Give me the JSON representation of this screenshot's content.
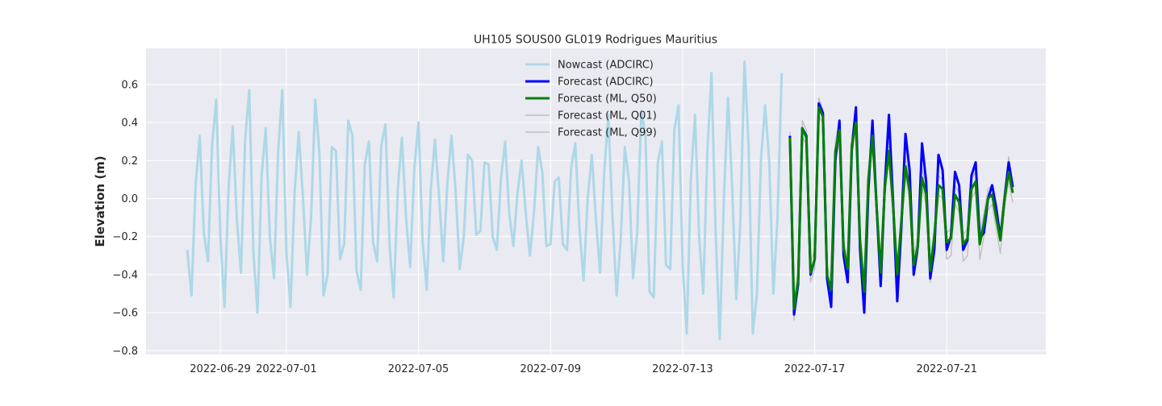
{
  "chart_data": {
    "type": "line",
    "title": "UH105 SOUS00 GL019 Rodrigues Mauritius",
    "xlabel": "",
    "ylabel": "Elevation (m)",
    "ylim": [
      -0.82,
      0.79
    ],
    "xlim": [
      "2022-06-26T18:00",
      "2022-07-24T00:00"
    ],
    "grid": true,
    "legend_position": "top-center",
    "x_ticks": [
      "2022-06-29",
      "2022-07-01",
      "2022-07-05",
      "2022-07-09",
      "2022-07-13",
      "2022-07-17",
      "2022-07-21"
    ],
    "y_ticks": [
      -0.8,
      -0.6,
      -0.4,
      -0.2,
      0.0,
      0.2,
      0.4,
      0.6
    ],
    "y_tick_labels": [
      "−0.8",
      "−0.6",
      "−0.4",
      "−0.2",
      "0.0",
      "0.2",
      "0.4",
      "0.6"
    ],
    "series": [
      {
        "name": "Nowcast (ADCIRC)",
        "color": "#add8e6",
        "x_start": "2022-06-28T00:00",
        "step_hours": 3,
        "values": [
          -0.27,
          -0.51,
          0.07,
          0.33,
          -0.18,
          -0.33,
          0.28,
          0.52,
          -0.2,
          -0.57,
          0.06,
          0.38,
          -0.11,
          -0.39,
          0.31,
          0.57,
          -0.28,
          -0.6,
          0.12,
          0.37,
          -0.2,
          -0.42,
          0.25,
          0.57,
          -0.28,
          -0.57,
          0.03,
          0.35,
          0.01,
          -0.4,
          -0.09,
          0.52,
          0.24,
          -0.51,
          -0.4,
          0.27,
          0.25,
          -0.32,
          -0.24,
          0.41,
          0.33,
          -0.38,
          -0.48,
          0.18,
          0.3,
          -0.23,
          -0.33,
          0.28,
          0.39,
          -0.25,
          -0.52,
          0.05,
          0.32,
          -0.1,
          -0.36,
          0.16,
          0.4,
          -0.22,
          -0.48,
          0.05,
          0.31,
          0.01,
          -0.33,
          0.08,
          0.33,
          0.04,
          -0.37,
          -0.2,
          0.23,
          0.2,
          -0.19,
          -0.17,
          0.19,
          0.18,
          -0.2,
          -0.27,
          0.11,
          0.3,
          -0.08,
          -0.25,
          0.03,
          0.2,
          -0.08,
          -0.3,
          -0.07,
          0.27,
          0.14,
          -0.25,
          -0.24,
          0.09,
          0.11,
          -0.24,
          -0.27,
          0.16,
          0.29,
          -0.15,
          -0.43,
          0.0,
          0.23,
          -0.11,
          -0.39,
          0.13,
          0.44,
          -0.09,
          -0.51,
          -0.22,
          0.27,
          0.1,
          -0.42,
          -0.18,
          0.46,
          0.33,
          -0.49,
          -0.52,
          0.19,
          0.3,
          -0.35,
          -0.37,
          0.36,
          0.49,
          -0.34,
          -0.71,
          0.1,
          0.44,
          -0.2,
          -0.5,
          0.25,
          0.66,
          -0.17,
          -0.74,
          0.0,
          0.53,
          0.06,
          -0.53,
          -0.12,
          0.72,
          0.28,
          -0.71,
          -0.5,
          0.21,
          0.49,
          0.19,
          -0.5,
          -0.1,
          0.66
        ]
      },
      {
        "name": "Forecast (ADCIRC)",
        "color": "#0000ff",
        "x_start": "2022-07-16T06:00",
        "step_hours": 3,
        "values": [
          0.33,
          -0.61,
          -0.45,
          0.37,
          0.33,
          -0.4,
          -0.32,
          0.5,
          0.45,
          -0.42,
          -0.57,
          0.2,
          0.41,
          -0.3,
          -0.44,
          0.26,
          0.48,
          -0.27,
          -0.6,
          0.04,
          0.41,
          -0.04,
          -0.46,
          0.07,
          0.44,
          -0.02,
          -0.54,
          -0.15,
          0.34,
          0.15,
          -0.4,
          -0.25,
          0.29,
          0.09,
          -0.42,
          -0.27,
          0.23,
          0.15,
          -0.27,
          -0.2,
          0.14,
          0.07,
          -0.27,
          -0.22,
          0.12,
          0.19,
          -0.21,
          -0.18,
          0.0,
          0.07,
          -0.05,
          -0.21,
          0.0,
          0.19,
          0.06
        ]
      },
      {
        "name": "Forecast (ML, Q50)",
        "color": "#008000",
        "x_start": "2022-07-16T06:00",
        "step_hours": 3,
        "values": [
          0.32,
          -0.58,
          -0.43,
          0.37,
          0.32,
          -0.39,
          -0.32,
          0.48,
          0.43,
          -0.4,
          -0.48,
          0.25,
          0.36,
          -0.26,
          -0.37,
          0.28,
          0.4,
          -0.22,
          -0.49,
          0.1,
          0.33,
          -0.04,
          -0.39,
          0.06,
          0.25,
          -0.04,
          -0.4,
          -0.12,
          0.17,
          0.04,
          -0.35,
          -0.25,
          0.11,
          0.02,
          -0.38,
          -0.2,
          0.07,
          0.05,
          -0.23,
          -0.21,
          0.02,
          -0.02,
          -0.24,
          -0.21,
          0.05,
          0.09,
          -0.24,
          -0.13,
          0.0,
          0.02,
          -0.1,
          -0.22,
          0.0,
          0.14,
          0.03
        ]
      },
      {
        "name": "Forecast (ML, Q01)",
        "color": "#c0c0c0",
        "x_start": "2022-07-16T06:00",
        "step_hours": 3,
        "values": [
          0.3,
          -0.64,
          -0.47,
          0.33,
          0.28,
          -0.44,
          -0.37,
          0.44,
          0.39,
          -0.45,
          -0.53,
          0.2,
          0.31,
          -0.31,
          -0.43,
          0.23,
          0.35,
          -0.27,
          -0.55,
          0.05,
          0.28,
          -0.09,
          -0.45,
          0.01,
          0.2,
          -0.09,
          -0.46,
          -0.17,
          0.12,
          -0.01,
          -0.41,
          -0.3,
          0.06,
          -0.03,
          -0.44,
          -0.25,
          0.02,
          0.0,
          -0.32,
          -0.3,
          -0.03,
          -0.07,
          -0.33,
          -0.3,
          0.0,
          0.04,
          -0.32,
          -0.2,
          -0.06,
          -0.03,
          -0.16,
          -0.29,
          -0.05,
          0.09,
          -0.02
        ]
      },
      {
        "name": "Forecast (ML, Q99)",
        "color": "#c0c0c0",
        "x_start": "2022-07-16T06:00",
        "step_hours": 3,
        "values": [
          0.35,
          -0.54,
          -0.39,
          0.41,
          0.36,
          -0.34,
          -0.27,
          0.53,
          0.47,
          -0.35,
          -0.43,
          0.3,
          0.41,
          -0.21,
          -0.32,
          0.33,
          0.45,
          -0.17,
          -0.44,
          0.15,
          0.38,
          0.01,
          -0.34,
          0.11,
          0.3,
          0.01,
          -0.35,
          -0.07,
          0.22,
          0.09,
          -0.3,
          -0.2,
          0.16,
          0.07,
          -0.33,
          -0.15,
          0.12,
          0.1,
          -0.18,
          -0.16,
          0.07,
          0.03,
          -0.19,
          -0.16,
          0.1,
          0.14,
          -0.19,
          -0.08,
          0.05,
          0.07,
          -0.05,
          -0.17,
          0.05,
          0.22,
          0.08
        ]
      }
    ]
  }
}
